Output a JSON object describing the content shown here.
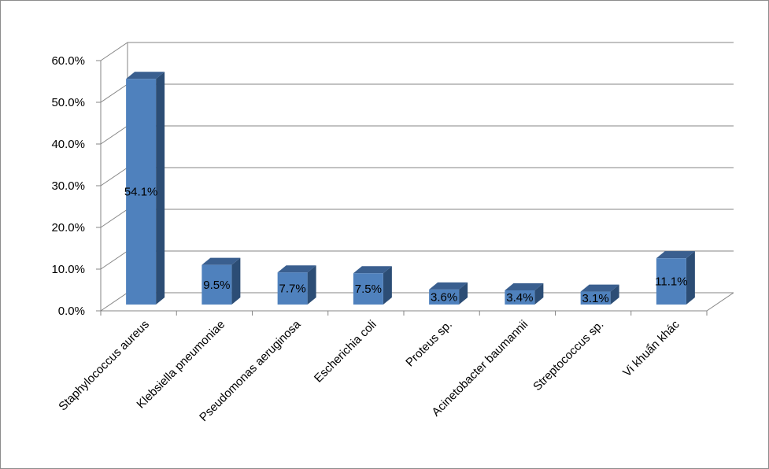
{
  "chart_data": {
    "type": "bar",
    "categories": [
      "Staphylococcus aureus",
      "Klebsiella pneumoniae",
      "Pseudomonas aeruginosa",
      "Escherichia coli",
      "Proteus sp.",
      "Acinetobacter baumannii",
      "Streptococcus sp.",
      "Vi khuẩn khác"
    ],
    "values": [
      54.1,
      9.5,
      7.7,
      7.5,
      3.6,
      3.4,
      3.1,
      11.1
    ],
    "data_labels": [
      "54.1%",
      "9.5%",
      "7.7%",
      "7.5%",
      "3.6%",
      "3.4%",
      "3.1%",
      "11.1%"
    ],
    "y_ticks": [
      "0.0%",
      "10.0%",
      "20.0%",
      "30.0%",
      "40.0%",
      "50.0%",
      "60.0%"
    ],
    "ylim": [
      0,
      60
    ],
    "grid": true,
    "style": "3d-column",
    "colors": {
      "bar_front": "#4f81bd",
      "bar_side": "#2c4d75",
      "bar_top": "#3a5f8f",
      "grid": "#868686"
    }
  }
}
